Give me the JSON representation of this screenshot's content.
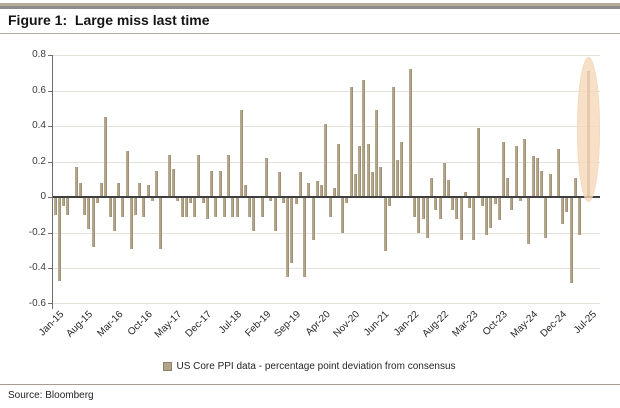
{
  "header": {
    "title": "Figure 1:  Large miss last time"
  },
  "footer": {
    "source": "Source: Bloomberg"
  },
  "legend": {
    "label": "US Core PPI data - percentage point deviation from consensus",
    "marker_color": "#b2a58a"
  },
  "colors": {
    "bar": "#b3a68b",
    "zero_line": "#3f3f3f",
    "gridline": "#e4e1da",
    "highlight_ellipse": "#f6d6b4",
    "top_rule_beige": "#b6ad98",
    "top_rule_gray": "#8c8c8c"
  },
  "chart_data": {
    "type": "bar",
    "title": "Figure 1: Large miss last time",
    "ylabel": "",
    "xlabel": "",
    "ylim": [
      -0.6,
      0.8
    ],
    "grid": true,
    "legend_position": "bottom",
    "y_ticks": [
      "0.8",
      "0.6",
      "0.4",
      "0.2",
      "0",
      "-0.2",
      "-0.4",
      "-0.6"
    ],
    "x_tick_labels": [
      "Jan-15",
      "Aug-15",
      "Mar-16",
      "Oct-16",
      "May-17",
      "Dec-17",
      "Jul-18",
      "Feb-19",
      "Sep-19",
      "Apr-20",
      "Nov-20",
      "Jun-21",
      "Jan-22",
      "Aug-22",
      "Mar-23",
      "Oct-23",
      "May-24",
      "Dec-24",
      "Jul-25"
    ],
    "x_tick_indices": [
      0,
      7,
      14,
      21,
      28,
      35,
      42,
      49,
      56,
      63,
      70,
      77,
      84,
      91,
      98,
      105,
      112,
      119,
      126
    ],
    "series_name": "US Core PPI data - percentage point deviation from consensus",
    "highlight": {
      "type": "ellipse",
      "month": "Jul-25",
      "month_index": 126,
      "color": "#f6d6b4"
    },
    "x": [
      "Jan-15",
      "Feb-15",
      "Mar-15",
      "Apr-15",
      "May-15",
      "Jun-15",
      "Jul-15",
      "Aug-15",
      "Sep-15",
      "Oct-15",
      "Nov-15",
      "Dec-15",
      "Jan-16",
      "Feb-16",
      "Mar-16",
      "Apr-16",
      "May-16",
      "Jun-16",
      "Jul-16",
      "Aug-16",
      "Sep-16",
      "Oct-16",
      "Nov-16",
      "Dec-16",
      "Jan-17",
      "Feb-17",
      "Mar-17",
      "Apr-17",
      "May-17",
      "Jun-17",
      "Jul-17",
      "Aug-17",
      "Sep-17",
      "Oct-17",
      "Nov-17",
      "Dec-17",
      "Jan-18",
      "Feb-18",
      "Mar-18",
      "Apr-18",
      "May-18",
      "Jun-18",
      "Jul-18",
      "Aug-18",
      "Sep-18",
      "Oct-18",
      "Nov-18",
      "Dec-18",
      "Jan-19",
      "Feb-19",
      "Mar-19",
      "Apr-19",
      "May-19",
      "Jun-19",
      "Jul-19",
      "Aug-19",
      "Sep-19",
      "Oct-19",
      "Nov-19",
      "Dec-19",
      "Jan-20",
      "Feb-20",
      "Mar-20",
      "Apr-20",
      "May-20",
      "Jun-20",
      "Jul-20",
      "Aug-20",
      "Sep-20",
      "Oct-20",
      "Nov-20",
      "Dec-20",
      "Jan-21",
      "Feb-21",
      "Mar-21",
      "Apr-21",
      "May-21",
      "Jun-21",
      "Jul-21",
      "Aug-21",
      "Sep-21",
      "Oct-21",
      "Nov-21",
      "Dec-21",
      "Jan-22",
      "Feb-22",
      "Mar-22",
      "Apr-22",
      "May-22",
      "Jun-22",
      "Jul-22",
      "Aug-22",
      "Sep-22",
      "Oct-22",
      "Nov-22",
      "Dec-22",
      "Jan-23",
      "Feb-23",
      "Mar-23",
      "Apr-23",
      "May-23",
      "Jun-23",
      "Jul-23",
      "Aug-23",
      "Sep-23",
      "Oct-23",
      "Nov-23",
      "Dec-23",
      "Jan-24",
      "Feb-24",
      "Mar-24",
      "Apr-24",
      "May-24",
      "Jun-24",
      "Jul-24",
      "Aug-24",
      "Sep-24",
      "Oct-24",
      "Nov-24",
      "Dec-24",
      "Jan-25",
      "Feb-25",
      "Mar-25",
      "Apr-25",
      "May-25",
      "Jun-25",
      "Jul-25"
    ],
    "values": [
      -0.1,
      -0.47,
      -0.05,
      -0.1,
      0,
      0.17,
      0.08,
      -0.1,
      -0.18,
      -0.28,
      -0.03,
      0.08,
      0.45,
      -0.11,
      -0.19,
      0.08,
      -0.11,
      0.26,
      -0.29,
      -0.1,
      0.08,
      -0.11,
      0.07,
      -0.02,
      0.15,
      -0.29,
      0,
      0.24,
      0.16,
      -0.02,
      -0.11,
      -0.11,
      -0.03,
      -0.11,
      0.24,
      -0.03,
      -0.12,
      0.15,
      -0.11,
      0.15,
      -0.11,
      0.24,
      -0.11,
      -0.11,
      0.49,
      0.07,
      -0.11,
      -0.19,
      0,
      -0.11,
      0.22,
      -0.02,
      -0.19,
      0.14,
      -0.03,
      -0.45,
      -0.37,
      -0.04,
      0.14,
      -0.45,
      0.08,
      -0.24,
      0.09,
      0.07,
      0.41,
      -0.11,
      0.05,
      0.3,
      -0.2,
      -0.03,
      0.62,
      0.13,
      0.29,
      0.66,
      0.3,
      0.14,
      0.49,
      0.17,
      -0.3,
      -0.05,
      0.62,
      0.21,
      0.31,
      0,
      0.72,
      -0.11,
      -0.2,
      -0.12,
      -0.23,
      0.11,
      -0.07,
      -0.12,
      0.19,
      0.1,
      -0.07,
      -0.12,
      -0.24,
      0.03,
      -0.06,
      -0.24,
      0.39,
      -0.05,
      -0.21,
      -0.17,
      -0.04,
      -0.13,
      0.31,
      0.11,
      -0.07,
      0.29,
      -0.02,
      0.33,
      -0.26,
      0.23,
      0.22,
      0.15,
      -0.23,
      0.13,
      0,
      0.27,
      -0.15,
      -0.08,
      -0.48,
      0.11,
      -0.21,
      0,
      0.71
    ]
  }
}
